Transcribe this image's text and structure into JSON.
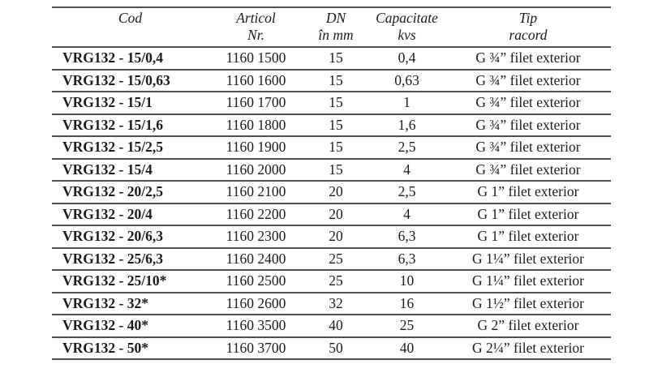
{
  "table": {
    "headers": [
      {
        "line1": "Cod",
        "line2": ""
      },
      {
        "line1": "Articol",
        "line2": "Nr."
      },
      {
        "line1": "DN",
        "line2": "în mm"
      },
      {
        "line1": "Capacitate",
        "line2": "kvs"
      },
      {
        "line1": "Tip",
        "line2": "racord"
      }
    ],
    "rows": [
      {
        "cod": "VRG132 - 15/0,4",
        "articol": "1160 1500",
        "dn": "15",
        "kvs": "0,4",
        "tip": "G ¾” filet exterior"
      },
      {
        "cod": "VRG132 - 15/0,63",
        "articol": "1160 1600",
        "dn": "15",
        "kvs": "0,63",
        "tip": "G ¾” filet exterior"
      },
      {
        "cod": "VRG132 - 15/1",
        "articol": "1160 1700",
        "dn": "15",
        "kvs": "1",
        "tip": "G ¾” filet exterior"
      },
      {
        "cod": "VRG132 - 15/1,6",
        "articol": "1160 1800",
        "dn": "15",
        "kvs": "1,6",
        "tip": "G ¾” filet exterior"
      },
      {
        "cod": "VRG132 - 15/2,5",
        "articol": "1160 1900",
        "dn": "15",
        "kvs": "2,5",
        "tip": "G ¾” filet exterior"
      },
      {
        "cod": "VRG132 - 15/4",
        "articol": "1160 2000",
        "dn": "15",
        "kvs": "4",
        "tip": "G ¾” filet exterior"
      },
      {
        "cod": "VRG132 - 20/2,5",
        "articol": "1160 2100",
        "dn": "20",
        "kvs": "2,5",
        "tip": "G 1” filet exterior"
      },
      {
        "cod": "VRG132 - 20/4",
        "articol": "1160 2200",
        "dn": "20",
        "kvs": "4",
        "tip": "G 1” filet exterior"
      },
      {
        "cod": "VRG132 - 20/6,3",
        "articol": "1160 2300",
        "dn": "20",
        "kvs": "6,3",
        "tip": "G 1” filet exterior"
      },
      {
        "cod": "VRG132 - 25/6,3",
        "articol": "1160 2400",
        "dn": "25",
        "kvs": "6,3",
        "tip": "G 1¼” filet exterior"
      },
      {
        "cod": "VRG132 - 25/10*",
        "articol": "1160 2500",
        "dn": "25",
        "kvs": "10",
        "tip": "G 1¼” filet exterior"
      },
      {
        "cod": "VRG132 - 32*",
        "articol": "1160 2600",
        "dn": "32",
        "kvs": "16",
        "tip": "G 1½” filet exterior"
      },
      {
        "cod": "VRG132 - 40*",
        "articol": "1160 3500",
        "dn": "40",
        "kvs": "25",
        "tip": "G 2” filet exterior"
      },
      {
        "cod": "VRG132 - 50*",
        "articol": "1160 3700",
        "dn": "50",
        "kvs": "40",
        "tip": "G 2¼” filet exterior"
      }
    ]
  },
  "colors": {
    "text": "#1b1b1b",
    "rule": "#4d4d4d",
    "background": "#ffffff"
  }
}
